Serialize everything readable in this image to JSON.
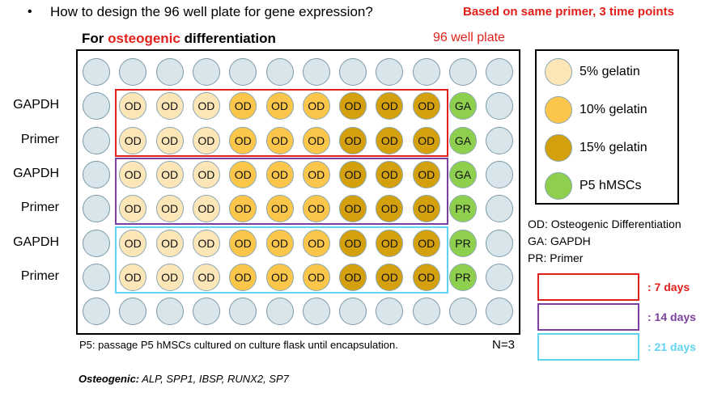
{
  "header": {
    "bullet": "•",
    "question": "How to design the 96 well plate for gene expression?",
    "note": "Based on same primer, 3 time points"
  },
  "plate": {
    "title_prefix": "For ",
    "title_highlight": "osteogenic",
    "title_suffix": " differentiation",
    "label": "96 well plate",
    "row_labels": [
      "GAPDH",
      "Primer",
      "GAPDH",
      "Primer",
      "GAPDH",
      "Primer"
    ],
    "rows": [
      [
        "empty",
        "empty",
        "empty",
        "empty",
        "empty",
        "empty",
        "empty",
        "empty",
        "empty",
        "empty",
        "empty",
        "empty"
      ],
      [
        "empty",
        "g5:OD",
        "g5:OD",
        "g5:OD",
        "g10:OD",
        "g10:OD",
        "g10:OD",
        "g15:OD",
        "g15:OD",
        "g15:OD",
        "p5:GA",
        "empty"
      ],
      [
        "empty",
        "g5:OD",
        "g5:OD",
        "g5:OD",
        "g10:OD",
        "g10:OD",
        "g10:OD",
        "g15:OD",
        "g15:OD",
        "g15:OD",
        "p5:GA",
        "empty"
      ],
      [
        "empty",
        "g5:OD",
        "g5:OD",
        "g5:OD",
        "g10:OD",
        "g10:OD",
        "g10:OD",
        "g15:OD",
        "g15:OD",
        "g15:OD",
        "p5:GA",
        "empty"
      ],
      [
        "empty",
        "g5:OD",
        "g5:OD",
        "g5:OD",
        "g10:OD",
        "g10:OD",
        "g10:OD",
        "g15:OD",
        "g15:OD",
        "g15:OD",
        "p5:PR",
        "empty"
      ],
      [
        "empty",
        "g5:OD",
        "g5:OD",
        "g5:OD",
        "g10:OD",
        "g10:OD",
        "g10:OD",
        "g15:OD",
        "g15:OD",
        "g15:OD",
        "p5:PR",
        "empty"
      ],
      [
        "empty",
        "g5:OD",
        "g5:OD",
        "g5:OD",
        "g10:OD",
        "g10:OD",
        "g10:OD",
        "g15:OD",
        "g15:OD",
        "g15:OD",
        "p5:PR",
        "empty"
      ],
      [
        "empty",
        "empty",
        "empty",
        "empty",
        "empty",
        "empty",
        "empty",
        "empty",
        "empty",
        "empty",
        "empty",
        "empty"
      ]
    ],
    "footnote": "P5: passage P5 hMSCs cultured on culture flask until encapsulation.",
    "n": "N=3"
  },
  "legend": {
    "items": [
      {
        "key": "g5",
        "label": "5% gelatin",
        "color": "#fce6b8"
      },
      {
        "key": "g10",
        "label": "10% gelatin",
        "color": "#fbc64a"
      },
      {
        "key": "g15",
        "label": "15% gelatin",
        "color": "#d4a00e"
      },
      {
        "key": "p5",
        "label": "P5 hMSCs",
        "color": "#8ed04e"
      }
    ],
    "abbreviations": [
      "OD: Osteogenic Differentiation",
      "GA: GAPDH",
      "PR: Primer"
    ]
  },
  "timepoints": [
    {
      "label": ": 7 days",
      "color": "#e0201b"
    },
    {
      "label": ": 14 days",
      "color": "#7b3fa0"
    },
    {
      "label": ": 21 days",
      "color": "#5fd3ef"
    }
  ],
  "genes": {
    "label": "Osteogenic:",
    "list": " ALP, SPP1, IBSP, RUNX2, SP7"
  },
  "colors": {
    "empty_well": "#d8e6ec",
    "accent_red": "#e0201b"
  }
}
